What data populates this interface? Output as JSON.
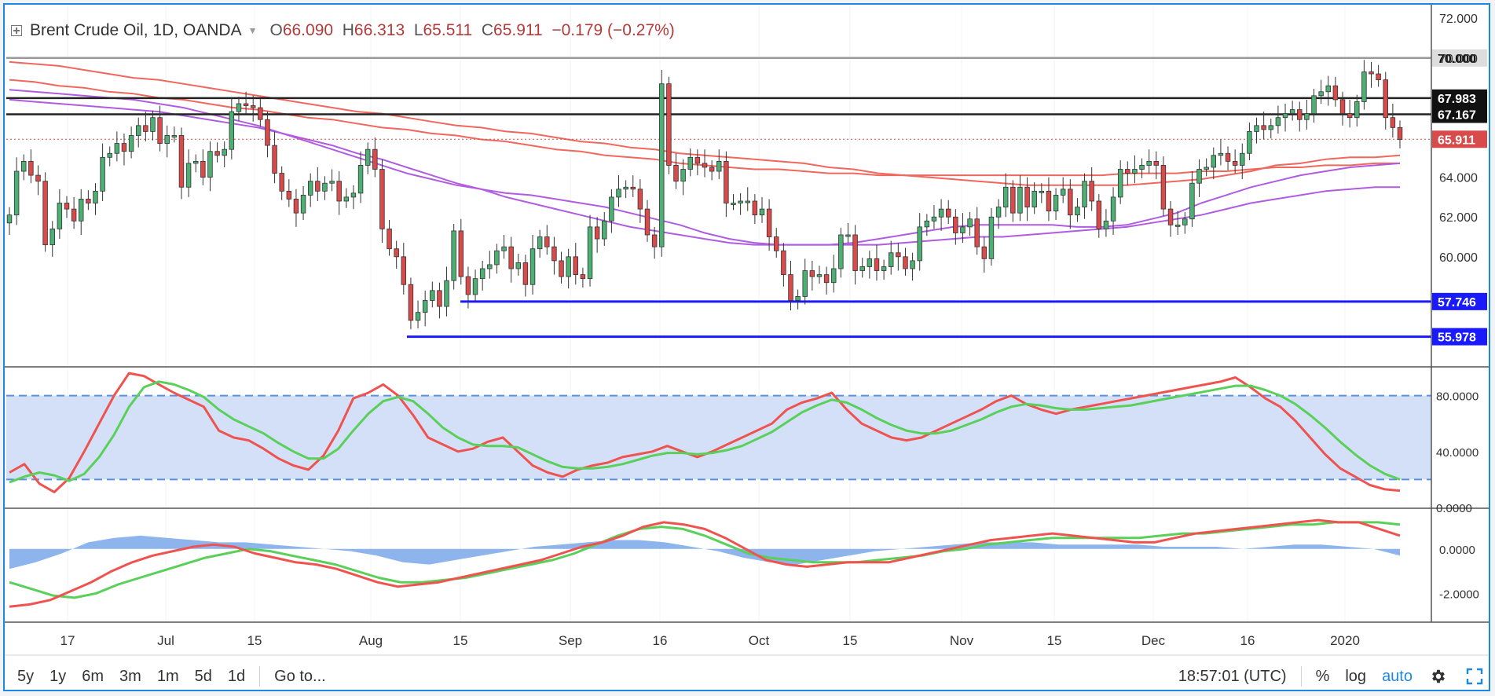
{
  "legend": {
    "symbol": "Brent Crude Oil, 1D, OANDA",
    "open_label": "O",
    "open": "66.090",
    "high_label": "H",
    "high": "66.313",
    "low_label": "L",
    "low": "65.511",
    "close_label": "C",
    "close": "65.911",
    "change": "−0.179 (−0.27%)"
  },
  "toolbar": {
    "ranges": [
      "5y",
      "1y",
      "6m",
      "3m",
      "1m",
      "5d",
      "1d"
    ],
    "goto_label": "Go to...",
    "clock": "18:57:01 (UTC)",
    "percent_label": "%",
    "log_label": "log",
    "auto_label": "auto",
    "settings_icon": "gear-icon",
    "fullscreen_icon": "fullscreen-icon"
  },
  "colors": {
    "up": "#4caf73",
    "down": "#d94a4a",
    "stoch_k": "#ef5350",
    "stoch_d": "#5ad05a",
    "ma_red": "#f0675e",
    "ma_purple": "#b05ce0",
    "support_line": "#1a1aff",
    "resistance_line": "#222222",
    "band_fill": "#d3e0f7",
    "histogram": "#7aa7ea"
  },
  "chart_data": [
    {
      "type": "candlestick",
      "title": "Brent Crude Oil, 1D, OANDA",
      "ylim": [
        54.5,
        72.6
      ],
      "y_ticks": [
        "72.000",
        "70.000",
        "64.000",
        "62.000",
        "60.000"
      ],
      "x_ticks": [
        "17",
        "Jul",
        "15",
        "Aug",
        "15",
        "Sep",
        "16",
        "Oct",
        "15",
        "Nov",
        "15",
        "Dec",
        "16",
        "2020"
      ],
      "horizontal_levels": [
        {
          "value": 70.0,
          "label": "70.000",
          "style": "gray"
        },
        {
          "value": 67.983,
          "label": "67.983",
          "style": "black"
        },
        {
          "value": 67.167,
          "label": "67.167",
          "style": "black"
        },
        {
          "value": 65.911,
          "label": "65.911",
          "style": "last-price"
        },
        {
          "value": 57.746,
          "label": "57.746",
          "style": "support"
        },
        {
          "value": 55.978,
          "label": "55.978",
          "style": "support"
        }
      ],
      "closes": [
        62.1,
        64.3,
        64.8,
        64.1,
        63.8,
        60.6,
        61.4,
        62.7,
        62.4,
        61.8,
        62.9,
        62.7,
        63.3,
        65.0,
        65.2,
        65.7,
        65.3,
        66.1,
        66.6,
        66.3,
        67.0,
        65.7,
        66.1,
        66.1,
        63.5,
        64.7,
        64.8,
        64.0,
        65.3,
        65.1,
        65.4,
        67.3,
        67.7,
        67.6,
        67.5,
        66.9,
        65.6,
        64.2,
        63.3,
        62.9,
        62.2,
        63.1,
        63.8,
        63.3,
        63.7,
        63.8,
        62.8,
        63.0,
        63.2,
        64.6,
        65.4,
        64.4,
        61.4,
        60.4,
        60.0,
        58.6,
        56.8,
        57.2,
        57.8,
        58.3,
        57.5,
        58.8,
        61.3,
        59.0,
        58.1,
        58.9,
        59.4,
        59.6,
        60.3,
        60.5,
        59.4,
        59.7,
        58.6,
        60.4,
        61.0,
        60.5,
        59.8,
        59.0,
        60.0,
        59.1,
        58.9,
        61.5,
        60.9,
        61.8,
        63.0,
        63.4,
        63.5,
        63.4,
        62.4,
        61.1,
        60.5,
        68.7,
        64.6,
        63.8,
        64.4,
        65.0,
        64.7,
        64.5,
        64.3,
        64.8,
        62.7,
        62.7,
        62.8,
        62.8,
        62.1,
        62.4,
        61.0,
        60.3,
        59.1,
        57.8,
        58.0,
        59.3,
        59.0,
        59.1,
        58.7,
        59.4,
        61.1,
        61.1,
        59.3,
        59.5,
        59.9,
        59.3,
        59.5,
        60.2,
        60.0,
        59.4,
        59.8,
        61.5,
        61.8,
        62.0,
        62.4,
        62.0,
        61.2,
        61.5,
        61.9,
        60.5,
        59.9,
        62.0,
        62.5,
        63.5,
        62.2,
        63.5,
        62.5,
        63.3,
        63.3,
        62.3,
        63.1,
        63.4,
        62.1,
        62.5,
        63.8,
        62.8,
        61.4,
        61.8,
        63.0,
        64.4,
        64.2,
        64.4,
        64.6,
        64.8,
        64.6,
        62.4,
        61.6,
        61.6,
        61.9,
        63.7,
        64.4,
        64.5,
        65.1,
        65.2,
        64.8,
        64.6,
        65.2,
        66.3,
        66.6,
        66.4,
        66.6,
        67.0,
        67.2,
        67.4,
        66.9,
        67.2,
        68.1,
        68.3,
        68.6,
        67.9,
        67.2,
        67.0,
        67.8,
        69.3,
        69.2,
        68.9,
        67.0,
        66.5,
        65.9
      ],
      "ma_red_1": [
        69.8,
        69.7,
        69.6,
        69.4,
        69.2,
        69.0,
        68.9,
        68.7,
        68.5,
        68.3,
        68.1,
        67.9,
        67.7,
        67.5,
        67.3,
        67.2,
        67.0,
        66.8,
        66.6,
        66.5,
        66.3,
        66.2,
        66.0,
        65.8,
        65.7,
        65.5,
        65.4,
        65.2,
        65.1,
        65.0,
        64.9,
        64.8,
        64.7,
        64.5,
        64.4,
        64.2,
        64.1,
        64.0,
        63.9,
        63.8,
        63.7,
        63.6,
        63.6,
        63.6,
        63.6,
        63.6,
        63.7,
        63.8,
        63.9,
        64.1,
        64.3,
        64.6,
        64.7,
        64.9,
        65.0,
        65.0,
        65.1
      ],
      "ma_red_2": [
        68.9,
        68.8,
        68.6,
        68.5,
        68.3,
        68.2,
        68.0,
        67.9,
        67.7,
        67.5,
        67.4,
        67.2,
        67.0,
        66.9,
        66.7,
        66.5,
        66.4,
        66.2,
        66.1,
        65.9,
        65.8,
        65.6,
        65.4,
        65.3,
        65.1,
        65.0,
        64.9,
        64.7,
        64.6,
        64.5,
        64.4,
        64.4,
        64.3,
        64.2,
        64.2,
        64.1,
        64.1,
        64.1,
        64.1,
        64.1,
        64.1,
        64.1,
        64.1,
        64.1,
        64.1,
        64.2,
        64.2,
        64.2,
        64.3,
        64.3,
        64.4,
        64.5,
        64.5,
        64.6,
        64.6,
        64.7,
        64.7
      ],
      "ma_purple_1": [
        68.4,
        68.3,
        68.2,
        68.1,
        68.0,
        67.9,
        67.7,
        67.5,
        67.2,
        66.9,
        66.6,
        66.2,
        65.8,
        65.4,
        65.0,
        64.6,
        64.2,
        63.9,
        63.6,
        63.4,
        63.2,
        63.1,
        62.9,
        62.7,
        62.5,
        62.2,
        61.9,
        61.6,
        61.2,
        60.9,
        60.7,
        60.6,
        60.6,
        60.6,
        60.7,
        60.9,
        61.1,
        61.3,
        61.5,
        61.6,
        61.6,
        61.6,
        61.6,
        61.5,
        61.5,
        61.6,
        61.9,
        62.2,
        62.7,
        63.1,
        63.5,
        63.8,
        64.1,
        64.3,
        64.5,
        64.6,
        64.7
      ],
      "ma_purple_2": [
        67.9,
        67.8,
        67.7,
        67.6,
        67.5,
        67.4,
        67.3,
        67.1,
        66.9,
        66.7,
        66.5,
        66.2,
        65.9,
        65.6,
        65.2,
        64.9,
        64.5,
        64.1,
        63.7,
        63.4,
        63.0,
        62.7,
        62.4,
        62.1,
        61.8,
        61.5,
        61.3,
        61.1,
        60.9,
        60.7,
        60.6,
        60.6,
        60.6,
        60.6,
        60.6,
        60.6,
        60.7,
        60.8,
        60.9,
        61.0,
        61.0,
        61.1,
        61.2,
        61.3,
        61.4,
        61.5,
        61.7,
        61.9,
        62.1,
        62.4,
        62.7,
        62.9,
        63.1,
        63.3,
        63.4,
        63.5,
        63.5
      ]
    },
    {
      "type": "line",
      "ylim": [
        0,
        100
      ],
      "y_ticks": [
        "80.0000",
        "40.0000",
        "0.0000"
      ],
      "band": [
        20,
        80
      ],
      "series": [
        {
          "values": [
            25,
            31,
            17,
            11,
            21,
            40,
            60,
            80,
            96,
            94,
            88,
            82,
            77,
            72,
            55,
            50,
            48,
            42,
            35,
            30,
            27,
            37,
            55,
            78,
            82,
            88,
            80,
            66,
            50,
            45,
            40,
            42,
            47,
            50,
            40,
            30,
            25,
            22,
            27,
            30,
            32,
            36,
            38,
            40,
            44,
            40,
            36,
            40,
            45,
            50,
            55,
            60,
            70,
            75,
            78,
            82,
            70,
            60,
            55,
            50,
            48,
            50,
            55,
            60,
            65,
            70,
            76,
            80,
            74,
            70,
            67,
            70,
            72,
            74,
            76,
            78,
            80,
            82,
            84,
            86,
            88,
            90,
            93,
            86,
            78,
            72,
            62,
            50,
            38,
            28,
            22,
            16,
            13,
            12
          ]
        },
        {
          "values": [
            18,
            22,
            25,
            23,
            19,
            24,
            36,
            52,
            72,
            86,
            90,
            88,
            84,
            79,
            70,
            63,
            58,
            53,
            46,
            40,
            35,
            35,
            42,
            55,
            67,
            76,
            79,
            76,
            67,
            57,
            50,
            45,
            44,
            44,
            43,
            38,
            33,
            29,
            28,
            28,
            29,
            31,
            34,
            37,
            39,
            39,
            38,
            39,
            41,
            44,
            49,
            54,
            61,
            68,
            73,
            77,
            75,
            70,
            64,
            59,
            55,
            53,
            53,
            55,
            59,
            63,
            68,
            72,
            74,
            73,
            71,
            70,
            70,
            71,
            72,
            73,
            75,
            77,
            79,
            81,
            83,
            85,
            87,
            87,
            84,
            80,
            74,
            66,
            57,
            47,
            38,
            30,
            24,
            20
          ]
        }
      ]
    },
    {
      "type": "line",
      "ylim": [
        -3.3,
        1.8
      ],
      "y_ticks": [
        "0.0000",
        "-2.0000"
      ],
      "series": [
        {
          "values": [
            -2.6,
            -2.5,
            -2.3,
            -1.9,
            -1.5,
            -1.0,
            -0.6,
            -0.3,
            -0.1,
            0.1,
            0.2,
            0.1,
            -0.2,
            -0.4,
            -0.6,
            -0.7,
            -0.9,
            -1.2,
            -1.5,
            -1.7,
            -1.6,
            -1.5,
            -1.3,
            -1.1,
            -0.9,
            -0.7,
            -0.5,
            -0.2,
            0.1,
            0.3,
            0.6,
            1.0,
            1.2,
            1.1,
            0.9,
            0.5,
            0.0,
            -0.5,
            -0.7,
            -0.8,
            -0.7,
            -0.6,
            -0.6,
            -0.6,
            -0.4,
            -0.2,
            0.0,
            0.2,
            0.4,
            0.5,
            0.6,
            0.7,
            0.6,
            0.5,
            0.4,
            0.3,
            0.3,
            0.5,
            0.7,
            0.8,
            0.9,
            1.0,
            1.1,
            1.2,
            1.3,
            1.2,
            1.2,
            0.9,
            0.6
          ]
        },
        {
          "values": [
            -1.5,
            -1.8,
            -2.1,
            -2.2,
            -2.0,
            -1.6,
            -1.3,
            -1.0,
            -0.7,
            -0.4,
            -0.2,
            0.0,
            -0.1,
            -0.3,
            -0.5,
            -0.7,
            -1.0,
            -1.3,
            -1.5,
            -1.5,
            -1.4,
            -1.3,
            -1.1,
            -0.9,
            -0.7,
            -0.5,
            -0.2,
            0.2,
            0.6,
            0.9,
            1.0,
            0.9,
            0.6,
            0.2,
            -0.2,
            -0.4,
            -0.5,
            -0.6,
            -0.6,
            -0.6,
            -0.5,
            -0.4,
            -0.3,
            -0.1,
            0.0,
            0.2,
            0.3,
            0.4,
            0.5,
            0.5,
            0.5,
            0.5,
            0.5,
            0.6,
            0.7,
            0.7,
            0.8,
            0.9,
            1.0,
            1.1,
            1.1,
            1.2,
            1.2,
            1.2,
            1.1
          ]
        },
        {
          "values": [
            -0.9,
            -0.6,
            -0.2,
            0.3,
            0.5,
            0.6,
            0.5,
            0.4,
            0.3,
            0.3,
            0.2,
            0.1,
            0.0,
            -0.1,
            -0.3,
            -0.6,
            -0.7,
            -0.5,
            -0.3,
            -0.1,
            0.1,
            0.2,
            0.3,
            0.4,
            0.4,
            0.3,
            0.1,
            -0.1,
            -0.4,
            -0.6,
            -0.7,
            -0.5,
            -0.3,
            -0.1,
            0.0,
            0.1,
            0.2,
            0.3,
            0.3,
            0.3,
            0.2,
            0.2,
            0.2,
            0.2,
            0.1,
            0.1,
            0.1,
            0.0,
            0.1,
            0.2,
            0.2,
            0.1,
            0.0,
            -0.3
          ]
        }
      ]
    }
  ]
}
